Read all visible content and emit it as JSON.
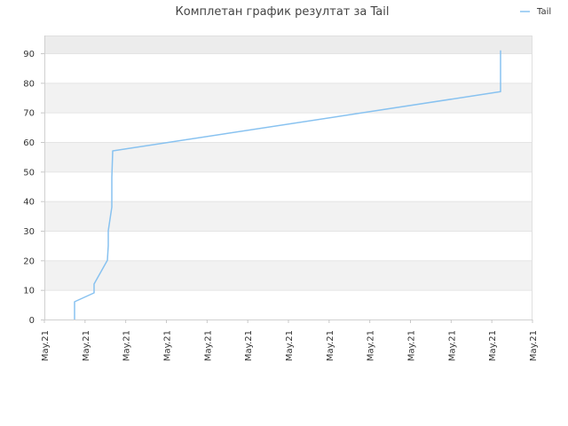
{
  "chart_data": {
    "type": "line",
    "title": "Комплетан график резултат за Tail",
    "legend": {
      "position": "top-right"
    },
    "series": [
      {
        "name": "Tail",
        "color": "#88c2f0",
        "points": [
          [
            0.0618,
            0
          ],
          [
            0.0618,
            6
          ],
          [
            0.1018,
            9
          ],
          [
            0.1018,
            12
          ],
          [
            0.1291,
            20
          ],
          [
            0.1309,
            25
          ],
          [
            0.1309,
            30
          ],
          [
            0.1382,
            38
          ],
          [
            0.1382,
            48
          ],
          [
            0.14,
            57
          ],
          [
            0.9345,
            77
          ],
          [
            0.9345,
            91
          ]
        ]
      }
    ],
    "x_tick_labels": [
      "May.21",
      "May.21",
      "May.21",
      "May.21",
      "May.21",
      "May.21",
      "May.21",
      "May.21",
      "May.21",
      "May.21",
      "May.21",
      "May.21",
      "May.21"
    ],
    "xlim": [
      0,
      1
    ],
    "y_ticks": [
      0,
      10,
      20,
      30,
      40,
      50,
      60,
      70,
      80,
      90
    ],
    "ylim": [
      0,
      96
    ],
    "grid": true,
    "band_colors": [
      "#ffffff",
      "#f2f2f2"
    ],
    "top_band_color": "#ececec"
  }
}
